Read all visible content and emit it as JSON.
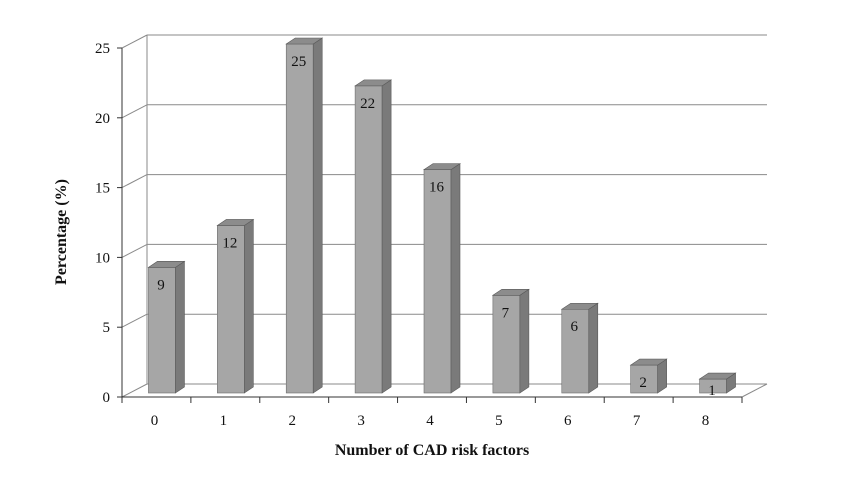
{
  "chart_data": {
    "type": "bar",
    "title": "",
    "xlabel": "Number of CAD risk factors",
    "ylabel": "Percentage (%)",
    "categories": [
      "0",
      "1",
      "2",
      "3",
      "4",
      "5",
      "6",
      "7",
      "8"
    ],
    "values": [
      9,
      12,
      25,
      22,
      16,
      7,
      6,
      2,
      1
    ],
    "data_labels": [
      "9",
      "12",
      "25",
      "22",
      "16",
      "7",
      "6",
      "2",
      "1"
    ],
    "ylim": [
      0,
      25
    ],
    "yticks": [
      "0",
      "5",
      "10",
      "15",
      "20",
      "25"
    ],
    "grid": true,
    "legend": "none",
    "style": "3d-column",
    "colors": {
      "bar_front": "#a6a6a6",
      "bar_side": "#7a7a7a",
      "bar_top": "#8c8c8c",
      "grid": "#8a8a8a"
    }
  }
}
